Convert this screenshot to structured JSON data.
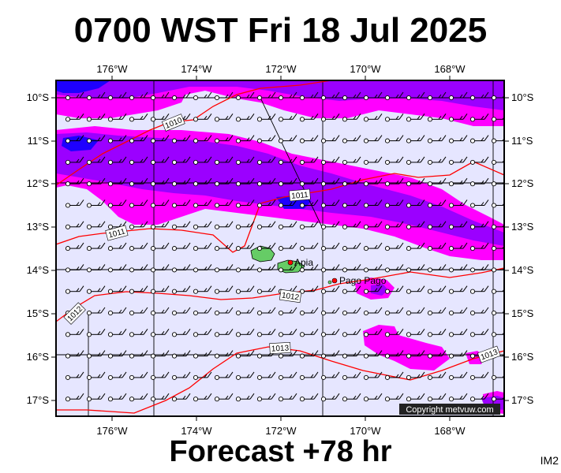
{
  "header": {
    "title": "0700 WST Fri 18 Jul 2025"
  },
  "footer": {
    "forecast": "Forecast +78 hr",
    "image_id_label": "IM2"
  },
  "map": {
    "lon_labels": [
      "176°W",
      "174°W",
      "172°W",
      "170°W",
      "168°W"
    ],
    "lat_labels": [
      "10°S",
      "11°S",
      "12°S",
      "13°S",
      "14°S",
      "15°S",
      "16°S",
      "17°S"
    ],
    "places": [
      {
        "name": "Apia"
      },
      {
        "name": "Pago Pago"
      }
    ],
    "isobar_labels": [
      "1010",
      "1011",
      "1011",
      "1012",
      "1012",
      "1013",
      "1013"
    ],
    "copyright": "Copyright metvuw.com",
    "colors": {
      "background": "#e6e6ff",
      "light_precip": "#ff00ff",
      "medium_precip": "#9b00ff",
      "heavy_precip": "#1e00ff",
      "isobar": "#ff0000",
      "land": "#66cc66"
    }
  }
}
